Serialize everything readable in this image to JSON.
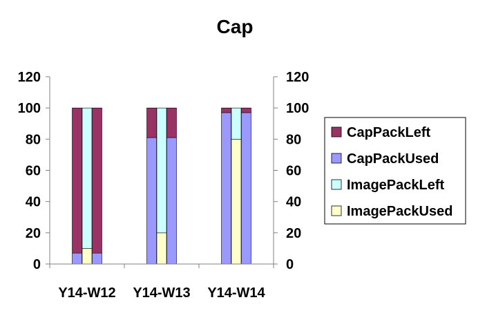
{
  "chart_data": {
    "type": "bar",
    "title": "Cap",
    "xlabel": "",
    "ylabel": "",
    "ylim": [
      0,
      120
    ],
    "yticks": [
      0,
      20,
      40,
      60,
      80,
      100,
      120
    ],
    "categories": [
      "Y14-W12",
      "Y14-W13",
      "Y14-W14"
    ],
    "series": [
      {
        "name": "CapPackLeft",
        "group": "Cap",
        "color": "#993366",
        "values": [
          93,
          19,
          3
        ]
      },
      {
        "name": "CapPackUsed",
        "group": "Cap",
        "color": "#9999ff",
        "values": [
          7,
          81,
          97
        ]
      },
      {
        "name": "ImagePackLeft",
        "group": "Image",
        "color": "#ccffff",
        "values": [
          90,
          80,
          20
        ]
      },
      {
        "name": "ImagePackUsed",
        "group": "Image",
        "color": "#ffffcc",
        "values": [
          10,
          20,
          80
        ]
      }
    ],
    "legend_order": [
      "CapPackLeft",
      "CapPackUsed",
      "ImagePackLeft",
      "ImagePackUsed"
    ],
    "legend_position": "right",
    "grid": false,
    "secondary_y_axis": true
  }
}
